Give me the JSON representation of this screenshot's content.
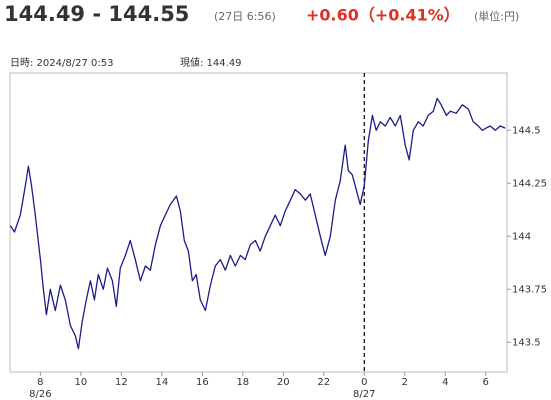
{
  "header": {
    "price": "144.49 - 144.55",
    "time": "(27日 6:56)",
    "change": "+0.60（+0.41%）",
    "unit": "(単位:円)",
    "datetime": "日時: 2024/8/27  0:53",
    "current": "現値: 144.49"
  },
  "chart_data": {
    "type": "line",
    "x": [
      6.52,
      6.72,
      7.01,
      7.26,
      7.41,
      7.56,
      7.75,
      8,
      8.15,
      8.3,
      8.49,
      8.74,
      8.99,
      9.23,
      9.48,
      9.73,
      9.88,
      10.07,
      10.27,
      10.47,
      10.67,
      10.86,
      11.11,
      11.31,
      11.56,
      11.75,
      11.95,
      12.2,
      12.44,
      12.69,
      12.94,
      13.19,
      13.43,
      13.68,
      13.93,
      14.17,
      14.42,
      14.72,
      14.91,
      15.11,
      15.31,
      15.51,
      15.7,
      15.9,
      16.15,
      16.4,
      16.64,
      16.89,
      17.14,
      17.38,
      17.63,
      17.88,
      18.12,
      18.37,
      18.62,
      18.86,
      19.11,
      19.36,
      19.6,
      19.85,
      20.1,
      20.35,
      20.59,
      20.84,
      21.09,
      21.33,
      21.58,
      21.83,
      22.07,
      22.32,
      22.57,
      22.81,
      23.06,
      23.21,
      23.41,
      23.6,
      23.8,
      24,
      24.2,
      24.4,
      24.59,
      24.79,
      25.04,
      25.28,
      25.53,
      25.78,
      26.02,
      26.22,
      26.42,
      26.67,
      26.91,
      27.16,
      27.41,
      27.6,
      27.8,
      28.05,
      28.25,
      28.54,
      28.84,
      29.14,
      29.38,
      29.63,
      29.83,
      30.02,
      30.22,
      30.47,
      30.72,
      30.96
    ],
    "series": [
      {
        "color": "#1c1c8a",
        "values": [
          144.05,
          144.02,
          144.1,
          144.24,
          144.33,
          144.24,
          144.1,
          143.89,
          143.75,
          143.63,
          143.75,
          143.65,
          143.77,
          143.7,
          143.58,
          143.53,
          143.47,
          143.6,
          143.7,
          143.79,
          143.7,
          143.82,
          143.75,
          143.85,
          143.79,
          143.67,
          143.85,
          143.91,
          143.98,
          143.89,
          143.79,
          143.86,
          143.84,
          143.96,
          144.05,
          144.1,
          144.15,
          144.19,
          144.12,
          143.98,
          143.93,
          143.79,
          143.82,
          143.7,
          143.65,
          143.77,
          143.86,
          143.89,
          143.84,
          143.91,
          143.86,
          143.91,
          143.89,
          143.96,
          143.98,
          143.93,
          144.0,
          144.05,
          144.1,
          144.05,
          144.12,
          144.17,
          144.22,
          144.2,
          144.17,
          144.2,
          144.1,
          144.0,
          143.91,
          144.0,
          144.17,
          144.26,
          144.43,
          144.31,
          144.29,
          144.22,
          144.15,
          144.24,
          144.45,
          144.57,
          144.5,
          144.54,
          144.52,
          144.56,
          144.52,
          144.57,
          144.43,
          144.36,
          144.5,
          144.54,
          144.52,
          144.57,
          144.59,
          144.65,
          144.62,
          144.57,
          144.59,
          144.58,
          144.62,
          144.6,
          144.54,
          144.52,
          144.5,
          144.51,
          144.52,
          144.5,
          144.52,
          144.51
        ]
      }
    ],
    "xlim": [
      6.5,
      31.05
    ],
    "xticks": [
      8,
      10,
      12,
      14,
      16,
      18,
      20,
      22,
      {
        "value": 24,
        "label": "0"
      },
      {
        "value": 26,
        "label": "2"
      },
      {
        "value": 28,
        "label": "4"
      },
      {
        "value": 30,
        "label": "6"
      }
    ],
    "date_labels": [
      {
        "value": 8,
        "label": "8/26"
      },
      {
        "value": 24,
        "label": "8/27"
      }
    ],
    "vline_x": 24,
    "ylim": [
      143.36,
      144.77
    ],
    "yticks": [
      144.5,
      144.25,
      144,
      143.75,
      143.5
    ]
  }
}
